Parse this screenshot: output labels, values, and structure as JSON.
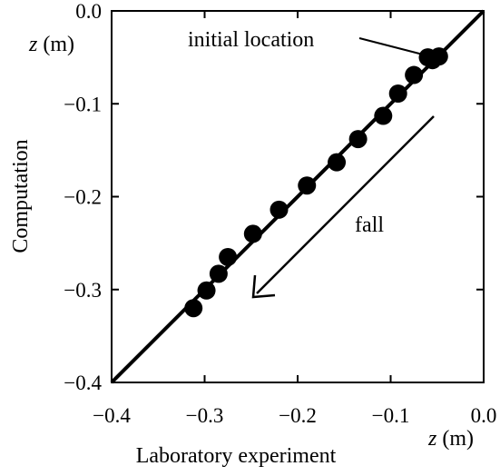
{
  "chart_data": {
    "type": "scatter",
    "xlabel": "Laboratory experiment",
    "ylabel": "Computation",
    "x_unit_label": {
      "var": "z",
      "unit": " (m)"
    },
    "y_unit_label": {
      "var": "z",
      "unit": " (m)"
    },
    "xlim": [
      -0.4,
      0.0
    ],
    "ylim": [
      -0.4,
      0.0
    ],
    "x_ticks": [
      -0.4,
      -0.3,
      -0.2,
      -0.1,
      0.0
    ],
    "y_ticks": [
      -0.4,
      -0.3,
      -0.2,
      -0.1,
      0.0
    ],
    "x_tick_labels": [
      "−0.4",
      "−0.3",
      "−0.2",
      "−0.1",
      "0.0"
    ],
    "y_tick_labels": [
      "−0.4",
      "−0.3",
      "−0.2",
      "−0.1",
      "0.0"
    ],
    "reference_line": {
      "x": [
        -0.4,
        0.0
      ],
      "y": [
        -0.4,
        0.0
      ]
    },
    "points": [
      {
        "x": -0.048,
        "y": -0.049
      },
      {
        "x": -0.055,
        "y": -0.053
      },
      {
        "x": -0.06,
        "y": -0.05
      },
      {
        "x": -0.075,
        "y": -0.069
      },
      {
        "x": -0.092,
        "y": -0.089
      },
      {
        "x": -0.108,
        "y": -0.113
      },
      {
        "x": -0.135,
        "y": -0.138
      },
      {
        "x": -0.158,
        "y": -0.163
      },
      {
        "x": -0.19,
        "y": -0.188
      },
      {
        "x": -0.22,
        "y": -0.214
      },
      {
        "x": -0.248,
        "y": -0.24
      },
      {
        "x": -0.275,
        "y": -0.265
      },
      {
        "x": -0.285,
        "y": -0.283
      },
      {
        "x": -0.298,
        "y": -0.301
      },
      {
        "x": -0.312,
        "y": -0.32
      }
    ],
    "annotations": {
      "initial": {
        "text": "initial location"
      },
      "fall": {
        "text": "fall"
      }
    },
    "grid": false,
    "colors": {
      "marker": "#000000",
      "line": "#000000"
    }
  }
}
